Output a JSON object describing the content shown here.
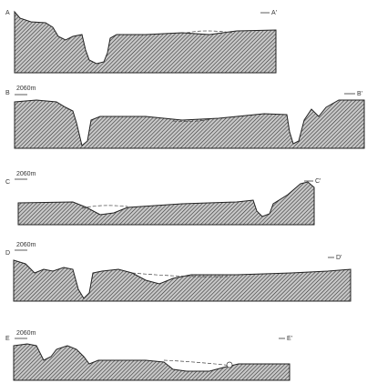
{
  "sections": [
    {
      "start": "A",
      "end": "A'"
    },
    {
      "start": "B",
      "scale": "2060m",
      "end": "B'"
    },
    {
      "start": "C",
      "scale": "2060m",
      "end": "C'"
    },
    {
      "start": "D",
      "scale": "2060m",
      "end": "D'"
    },
    {
      "start": "E",
      "scale": "2060m",
      "end": "E'"
    }
  ]
}
